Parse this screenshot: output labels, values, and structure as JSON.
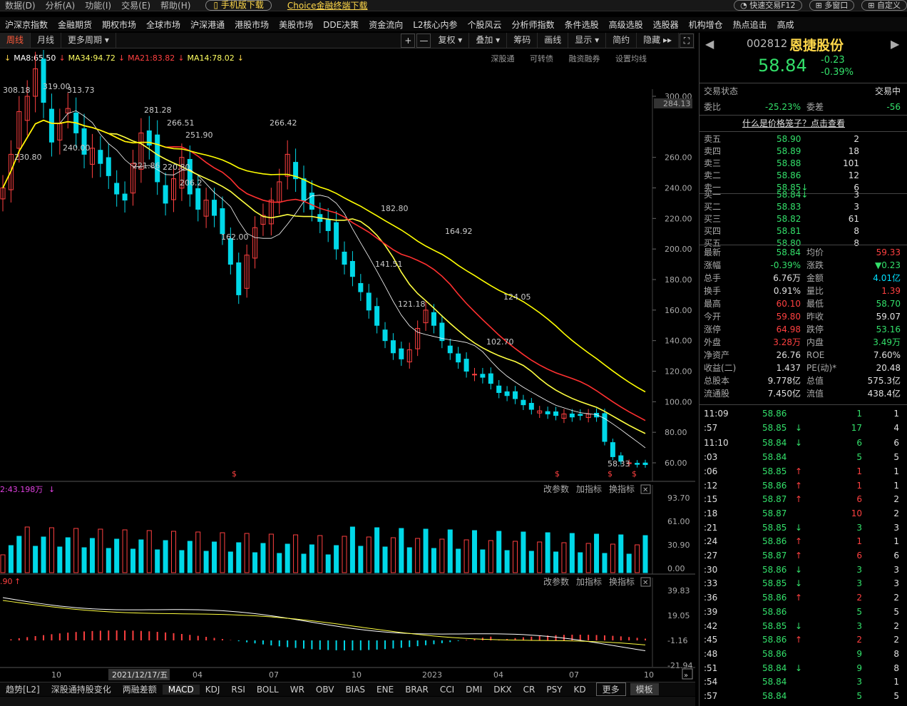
{
  "menu": {
    "items": [
      "数据(D)",
      "分析(A)",
      "功能(I)",
      "交易(E)",
      "帮助(H)"
    ],
    "mobile": "手机版下载",
    "choice": "Choice金融终端下载",
    "fast_trade": "快速交易F12",
    "multi_window": "多窗口",
    "custom": "自定义"
  },
  "nav": [
    "沪深京指数",
    "金融期货",
    "期权市场",
    "全球市场",
    "沪深港通",
    "港股市场",
    "美股市场",
    "DDE决策",
    "资金流向",
    "L2核心内参",
    "个股风云",
    "分析师指数",
    "条件选股",
    "高级选股",
    "选股器",
    "机构增仓",
    "热点追击",
    "高成"
  ],
  "toolbar": {
    "period_week": "周线",
    "period_month": "月线",
    "more_period": "更多周期",
    "plus": "+",
    "minus": "—",
    "fq": "复权",
    "overlay": "叠加",
    "chips": "筹码",
    "draw": "画线",
    "display": "显示",
    "concise": "简约",
    "hide": "隐藏"
  },
  "ma": {
    "ma8": "MA8:65.50",
    "ma34": "MA34:94.72",
    "ma21": "MA21:83.82",
    "ma14": "MA14:78.02"
  },
  "sub_links": [
    "深股通",
    "可转债",
    "融资融券",
    "设置均线"
  ],
  "price_axis": {
    "ticks": [
      "300.00",
      "260.00",
      "240.00",
      "220.00",
      "200.00",
      "180.00",
      "160.00",
      "140.00",
      "120.00",
      "100.00",
      "80.00",
      "60.00"
    ],
    "current": "284.13"
  },
  "price_labels": {
    "p308": "308.18",
    "p319": "319.00",
    "p313": "313.73",
    "p281": "281.28",
    "p266a": "266.51",
    "p251": "251.90",
    "p266b": "266.42",
    "p230": "230.80",
    "p240": "240.00",
    "p221": "221.86",
    "p220": "220.80",
    "p206": "206.2",
    "p162": "162.00",
    "p182": "182.80",
    "p164": "164.92",
    "p141": "141.51",
    "p121": "121.18",
    "p124": "124.05",
    "p102": "102.70",
    "p58": "58.33"
  },
  "vol": {
    "label": "2:43.198万",
    "ticks": [
      "93.70",
      "61.00",
      "30.90",
      "0.00"
    ],
    "links": [
      "改参数",
      "加指标",
      "换指标"
    ]
  },
  "macd": {
    "label": ".90",
    "ticks": [
      "39.83",
      "19.05",
      "-1.16",
      "-21.94"
    ],
    "links": [
      "改参数",
      "加指标",
      "换指标"
    ]
  },
  "xaxis": {
    "labels": [
      "10",
      "04",
      "07",
      "10",
      "2023",
      "04",
      "07",
      "10"
    ],
    "date": "2021/12/17/五"
  },
  "indicators": [
    "趋势[L2]",
    "深股通持股变化",
    "两融差额",
    "MACD",
    "KDJ",
    "RSI",
    "BOLL",
    "WR",
    "OBV",
    "BIAS",
    "ENE",
    "BRAR",
    "CCI",
    "DMI",
    "DKX",
    "CR",
    "PSY",
    "KD",
    "更多",
    "模板"
  ],
  "stock": {
    "code": "002812",
    "name": "恩捷股份",
    "price": "58.84",
    "change": "-0.23",
    "pct": "-0.39%"
  },
  "status": {
    "label": "交易状态",
    "value": "交易中",
    "wb_label": "委比",
    "wb": "-25.23%",
    "wc_label": "委差",
    "wc": "-56",
    "cage": "什么是价格笼子？点击查看"
  },
  "asks": [
    {
      "label": "卖五",
      "price": "58.90",
      "vol": "2"
    },
    {
      "label": "卖四",
      "price": "58.89",
      "vol": "18"
    },
    {
      "label": "卖三",
      "price": "58.88",
      "vol": "101"
    },
    {
      "label": "卖二",
      "price": "58.86",
      "vol": "12"
    },
    {
      "label": "卖一",
      "price": "58.85↓",
      "vol": "6"
    }
  ],
  "bids": [
    {
      "label": "买一",
      "price": "58.84↓",
      "vol": "3"
    },
    {
      "label": "买二",
      "price": "58.83",
      "vol": "3"
    },
    {
      "label": "买三",
      "price": "58.82",
      "vol": "61"
    },
    {
      "label": "买四",
      "price": "58.81",
      "vol": "8"
    },
    {
      "label": "买五",
      "price": "58.80",
      "vol": "8"
    }
  ],
  "stats": [
    {
      "l1": "最新",
      "v1": "58.84",
      "c1": "g",
      "l2": "均价",
      "v2": "59.33",
      "c2": "r"
    },
    {
      "l1": "涨幅",
      "v1": "-0.39%",
      "c1": "g",
      "l2": "涨跌",
      "v2": "▼0.23",
      "c2": "g"
    },
    {
      "l1": "总手",
      "v1": "6.76万",
      "c1": "w",
      "l2": "金额",
      "v2": "4.01亿",
      "c2": "c"
    },
    {
      "l1": "换手",
      "v1": "0.91%",
      "c1": "w",
      "l2": "量比",
      "v2": "1.39",
      "c2": "r"
    },
    {
      "l1": "最高",
      "v1": "60.10",
      "c1": "r",
      "l2": "最低",
      "v2": "58.70",
      "c2": "g"
    },
    {
      "l1": "今开",
      "v1": "59.80",
      "c1": "r",
      "l2": "昨收",
      "v2": "59.07",
      "c2": "w"
    },
    {
      "l1": "涨停",
      "v1": "64.98",
      "c1": "r",
      "l2": "跌停",
      "v2": "53.16",
      "c2": "g"
    },
    {
      "l1": "外盘",
      "v1": "3.28万",
      "c1": "r",
      "l2": "内盘",
      "v2": "3.49万",
      "c2": "g"
    },
    {
      "l1": "净资产",
      "v1": "26.76",
      "c1": "w",
      "l2": "ROE",
      "v2": "7.60%",
      "c2": "w"
    },
    {
      "l1": "收益(二)",
      "v1": "1.437",
      "c1": "w",
      "l2": "PE(动)*",
      "v2": "20.48",
      "c2": "w"
    },
    {
      "l1": "总股本",
      "v1": "9.778亿",
      "c1": "w",
      "l2": "总值",
      "v2": "575.3亿",
      "c2": "w"
    },
    {
      "l1": "流通股",
      "v1": "7.450亿",
      "c1": "w",
      "l2": "流值",
      "v2": "438.4亿",
      "c2": "w"
    }
  ],
  "ticks": [
    {
      "t": "11:09",
      "p": "58.86",
      "a": "",
      "v": "1",
      "n": "1",
      "vc": "g"
    },
    {
      "t": ":57",
      "p": "58.85",
      "a": "↓",
      "v": "17",
      "n": "4",
      "vc": "g"
    },
    {
      "t": "11:10",
      "p": "58.84",
      "a": "↓",
      "v": "6",
      "n": "6",
      "vc": "g"
    },
    {
      "t": ":03",
      "p": "58.84",
      "a": "",
      "v": "5",
      "n": "5",
      "vc": "g"
    },
    {
      "t": ":06",
      "p": "58.85",
      "a": "↑",
      "v": "1",
      "n": "1",
      "vc": "r"
    },
    {
      "t": ":12",
      "p": "58.86",
      "a": "↑",
      "v": "1",
      "n": "1",
      "vc": "r"
    },
    {
      "t": ":15",
      "p": "58.87",
      "a": "↑",
      "v": "6",
      "n": "2",
      "vc": "r"
    },
    {
      "t": ":18",
      "p": "58.87",
      "a": "",
      "v": "10",
      "n": "2",
      "vc": "r"
    },
    {
      "t": ":21",
      "p": "58.85",
      "a": "↓",
      "v": "3",
      "n": "3",
      "vc": "g"
    },
    {
      "t": ":24",
      "p": "58.86",
      "a": "↑",
      "v": "1",
      "n": "1",
      "vc": "r"
    },
    {
      "t": ":27",
      "p": "58.87",
      "a": "↑",
      "v": "6",
      "n": "6",
      "vc": "r"
    },
    {
      "t": ":30",
      "p": "58.86",
      "a": "↓",
      "v": "3",
      "n": "3",
      "vc": "g"
    },
    {
      "t": ":33",
      "p": "58.85",
      "a": "↓",
      "v": "3",
      "n": "3",
      "vc": "g"
    },
    {
      "t": ":36",
      "p": "58.86",
      "a": "↑",
      "v": "2",
      "n": "2",
      "vc": "r"
    },
    {
      "t": ":39",
      "p": "58.86",
      "a": "",
      "v": "5",
      "n": "5",
      "vc": "g"
    },
    {
      "t": ":42",
      "p": "58.85",
      "a": "↓",
      "v": "3",
      "n": "2",
      "vc": "g"
    },
    {
      "t": ":45",
      "p": "58.86",
      "a": "↑",
      "v": "2",
      "n": "2",
      "vc": "r"
    },
    {
      "t": ":48",
      "p": "58.86",
      "a": "",
      "v": "9",
      "n": "8",
      "vc": "g"
    },
    {
      "t": ":51",
      "p": "58.84",
      "a": "↓",
      "v": "9",
      "n": "8",
      "vc": "g"
    },
    {
      "t": ":54",
      "p": "58.84",
      "a": "",
      "v": "3",
      "n": "1",
      "vc": "g"
    },
    {
      "t": ":57",
      "p": "58.84",
      "a": "",
      "v": "5",
      "n": "5",
      "vc": "g"
    }
  ],
  "kline": [
    240,
    262,
    290,
    300,
    318,
    296,
    270,
    282,
    292,
    276,
    262,
    266,
    256,
    248,
    236,
    232,
    256,
    276,
    268,
    244,
    230,
    246,
    260,
    236,
    226,
    232,
    222,
    210,
    190,
    170,
    196,
    214,
    222,
    232,
    244,
    262,
    246,
    232,
    226,
    218,
    212,
    200,
    190,
    182,
    172,
    160,
    150,
    140,
    132,
    128,
    134,
    148,
    160,
    150,
    140,
    132,
    126,
    120,
    118,
    116,
    112,
    106,
    104,
    102,
    98,
    95,
    94,
    92,
    91,
    92,
    90,
    91,
    92,
    90,
    74,
    64,
    61,
    60,
    59,
    58.84
  ],
  "colors": {
    "up": "#ff4040",
    "down": "#00d8e8",
    "ma8": "#ffffff",
    "ma14": "#ffff40",
    "ma21": "#ff3030",
    "ma34": "#ffff00"
  }
}
